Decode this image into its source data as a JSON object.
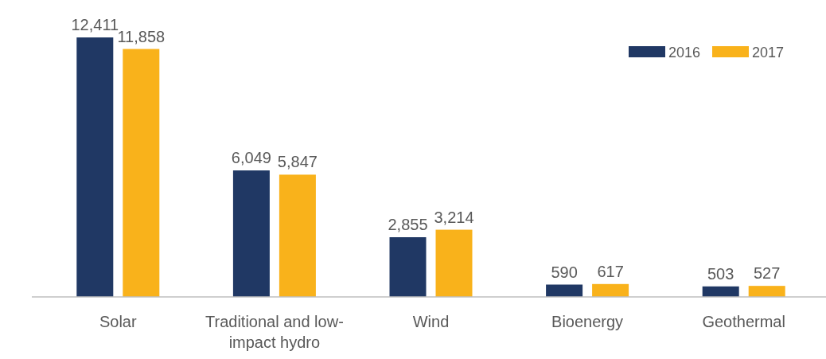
{
  "chart_data": {
    "type": "bar",
    "categories": [
      "Solar",
      "Traditional and low-impact hydro",
      "Wind",
      "Bioenergy",
      "Geothermal"
    ],
    "series": [
      {
        "name": "2016",
        "color": "#203864",
        "values": [
          12411,
          6049,
          2855,
          590,
          503
        ],
        "value_labels": [
          "12,411",
          "6,049",
          "2,855",
          "590",
          "503"
        ]
      },
      {
        "name": "2017",
        "color": "#f9b21b",
        "values": [
          11858,
          5847,
          3214,
          617,
          527
        ],
        "value_labels": [
          "11,858",
          "5,847",
          "3,214",
          "617",
          "527"
        ]
      }
    ],
    "legend": "top right"
  }
}
